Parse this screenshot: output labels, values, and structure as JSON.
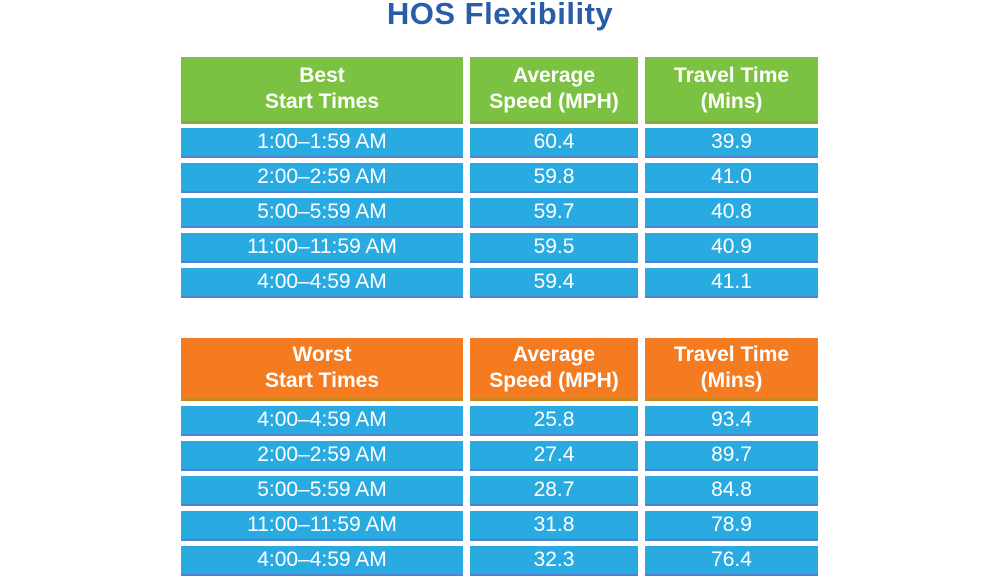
{
  "title": "HOS Flexibility",
  "colors": {
    "title_text": "#2A5DA9",
    "best_header_bg": "#7CC242",
    "best_header_edge": "#95A33E",
    "worst_header_bg": "#F47B20",
    "worst_header_edge": "#C8891F",
    "row_bg": "#29ABE2",
    "row_edge": "#5580D0",
    "cell_text": "#FFFFFF"
  },
  "chart_data": [
    {
      "type": "table",
      "title": "Best Start Times",
      "headers": [
        [
          "Best",
          "Start Times"
        ],
        [
          "Average",
          "Speed (MPH)"
        ],
        [
          "Travel Time",
          "(Mins)"
        ]
      ],
      "rows": [
        [
          "1:00–1:59 AM",
          "60.4",
          "39.9"
        ],
        [
          "2:00–2:59 AM",
          "59.8",
          "41.0"
        ],
        [
          "5:00–5:59 AM",
          "59.7",
          "40.8"
        ],
        [
          "11:00–11:59 AM",
          "59.5",
          "40.9"
        ],
        [
          "4:00–4:59 AM",
          "59.4",
          "41.1"
        ]
      ]
    },
    {
      "type": "table",
      "title": "Worst Start Times",
      "headers": [
        [
          "Worst",
          "Start Times"
        ],
        [
          "Average",
          "Speed (MPH)"
        ],
        [
          "Travel Time",
          "(Mins)"
        ]
      ],
      "rows": [
        [
          "4:00–4:59 AM",
          "25.8",
          "93.4"
        ],
        [
          "2:00–2:59 AM",
          "27.4",
          "89.7"
        ],
        [
          "5:00–5:59 AM",
          "28.7",
          "84.8"
        ],
        [
          "11:00–11:59 AM",
          "31.8",
          "78.9"
        ],
        [
          "4:00–4:59 AM",
          "32.3",
          "76.4"
        ]
      ]
    }
  ]
}
